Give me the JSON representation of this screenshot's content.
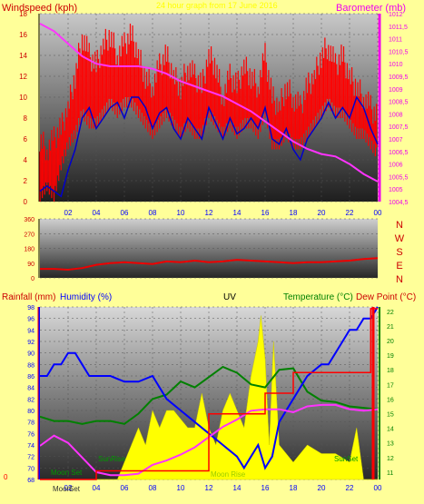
{
  "colors": {
    "page_bg": "#ffff99",
    "windspeed": "#ff0000",
    "wind_avg": "#0000cc",
    "barometer": "#ff33ff",
    "direction": "#ee0000",
    "rainfall": "#ff0000",
    "humidity": "#0000ff",
    "uv": "#ffff00",
    "temperature": "#008000",
    "dew_point": "#ff33ff",
    "wind_label": "#cc0000",
    "baro_label": "#ee00ee",
    "green_label": "#009900",
    "dark_label": "#333333"
  },
  "top_panel": {
    "left_title": "Windspeed (kph)",
    "center_title": "24 hour graph from 17 June 2016",
    "right_title": "Barometer (mb)"
  },
  "middle_panel": {
    "compass": [
      "N",
      "W",
      "S",
      "E",
      "N"
    ]
  },
  "bottom_panel": {
    "rainfall_label": "Rainfall (mm)",
    "humidity_label": "Humidity (%)",
    "uv_label": "UV",
    "temperature_label": "Temperature (°C)",
    "dewpoint_label": "Dew Point (°C)",
    "events": {
      "moon_set": "Moon Set",
      "sun_rise": "SunRise",
      "moon_rise": "Moon Rise",
      "sun_set": "SunSet"
    },
    "moon_label": "Moon",
    "moon_label_val": "Set"
  },
  "chart_data": [
    {
      "type": "line",
      "title": "24 hour graph from 17 June 2016",
      "x_ticks": [
        "02",
        "04",
        "06",
        "08",
        "10",
        "12",
        "14",
        "16",
        "18",
        "20",
        "22",
        "00"
      ],
      "ylabel_left": "Windspeed (kph)",
      "ylim_left": [
        0,
        18
      ],
      "y_ticks_left": [
        0,
        2,
        4,
        6,
        8,
        10,
        12,
        14,
        16,
        18
      ],
      "ylabel_right": "Barometer (mb)",
      "ylim_right": [
        1004.5,
        1012
      ],
      "y_ticks_right": [
        "1004,5",
        "1005",
        "1005,5",
        "1006",
        "1006,5",
        "1007",
        "1007,5",
        "1008",
        "1008,5",
        "1009",
        "1009,5",
        "1010",
        "1010,5",
        "1011",
        "1011,5",
        "1012"
      ],
      "series": [
        {
          "name": "Windspeed (kph)",
          "axis": "left",
          "style": "gust-bars",
          "x": [
            0,
            0.5,
            1,
            1.5,
            2,
            2.5,
            3,
            3.5,
            4,
            4.5,
            5,
            5.5,
            6,
            6.5,
            7,
            7.5,
            8,
            8.5,
            9,
            9.5,
            10,
            10.5,
            11,
            11.5,
            12,
            12.5,
            13,
            13.5,
            14,
            14.5,
            15,
            15.5,
            16,
            16.5,
            17,
            17.5,
            18,
            18.5,
            19,
            19.5,
            20,
            20.5,
            21,
            21.5,
            22,
            22.5,
            23,
            23.5,
            24
          ],
          "values": [
            6,
            5,
            6,
            7,
            9,
            12,
            16,
            14,
            13,
            15,
            16,
            14,
            15,
            16,
            14,
            12,
            11,
            13,
            14,
            12,
            11,
            13,
            12,
            11,
            14,
            13,
            10,
            12,
            11,
            13,
            12,
            11,
            14,
            10,
            9,
            11,
            10,
            9,
            11,
            12,
            14,
            15,
            13,
            14,
            12,
            11,
            10,
            9,
            8
          ],
          "low": [
            0,
            1,
            0,
            3,
            5,
            6,
            8,
            7,
            7,
            8,
            9,
            8,
            9,
            9,
            8,
            7,
            6,
            7,
            8,
            7,
            6,
            7,
            6,
            6,
            8,
            7,
            6,
            7,
            6,
            7,
            7,
            6,
            8,
            5,
            5,
            6,
            5,
            5,
            6,
            7,
            8,
            9,
            8,
            8,
            7,
            6,
            6,
            5,
            4
          ]
        },
        {
          "name": "Average wind",
          "axis": "left",
          "x": [
            0,
            0.5,
            1,
            1.5,
            2,
            2.5,
            3,
            3.5,
            4,
            4.5,
            5,
            5.5,
            6,
            6.5,
            7,
            7.5,
            8,
            8.5,
            9,
            9.5,
            10,
            10.5,
            11,
            11.5,
            12,
            12.5,
            13,
            13.5,
            14,
            14.5,
            15,
            15.5,
            16,
            16.5,
            17,
            17.5,
            18,
            18.5,
            19,
            19.5,
            20,
            20.5,
            21,
            21.5,
            22,
            22.5,
            23,
            23.5,
            24
          ],
          "values": [
            1,
            1.5,
            1,
            0.5,
            3,
            5,
            8,
            9,
            7,
            8,
            9,
            9.5,
            8,
            10,
            10,
            9,
            7,
            8.5,
            9,
            7,
            6,
            8,
            7,
            6,
            9,
            7.5,
            6,
            8,
            6.5,
            7,
            8,
            7,
            9,
            6,
            5.5,
            7,
            5,
            4,
            6,
            7,
            8,
            9.5,
            8,
            9,
            8,
            10,
            9,
            7,
            5.5
          ]
        },
        {
          "name": "Barometer (mb)",
          "axis": "right",
          "x": [
            0,
            1,
            2,
            3,
            4,
            5,
            6,
            7,
            8,
            9,
            10,
            11,
            12,
            13,
            14,
            15,
            16,
            17,
            18,
            19,
            20,
            21,
            22,
            23,
            24
          ],
          "values": [
            1011.6,
            1011.3,
            1010.8,
            1010.3,
            1010.0,
            1009.9,
            1009.9,
            1009.9,
            1009.8,
            1009.6,
            1009.3,
            1009.1,
            1008.9,
            1008.7,
            1008.4,
            1008.1,
            1007.7,
            1007.3,
            1006.9,
            1006.6,
            1006.4,
            1006.3,
            1006.0,
            1005.6,
            1005.3
          ]
        }
      ]
    },
    {
      "type": "line",
      "x_ticks": [],
      "ylim": [
        0,
        360
      ],
      "y_ticks": [
        0,
        90,
        180,
        270,
        360
      ],
      "series": [
        {
          "name": "Wind direction",
          "x": [
            0,
            1,
            2,
            3,
            4,
            5,
            6,
            7,
            8,
            9,
            10,
            11,
            12,
            13,
            14,
            15,
            16,
            17,
            18,
            19,
            20,
            21,
            22,
            23,
            24
          ],
          "values": [
            55,
            55,
            50,
            60,
            80,
            90,
            95,
            90,
            85,
            100,
            95,
            105,
            95,
            100,
            110,
            105,
            100,
            95,
            90,
            95,
            95,
            100,
            105,
            115,
            120
          ]
        }
      ]
    },
    {
      "type": "line",
      "x_ticks": [
        "02",
        "04",
        "06",
        "08",
        "10",
        "12",
        "14",
        "16",
        "18",
        "20",
        "22",
        "00"
      ],
      "ylim_rain": [
        0,
        1
      ],
      "ylim_humidity": [
        68,
        98
      ],
      "y_ticks_humidity": [
        68,
        70,
        72,
        74,
        76,
        78,
        80,
        82,
        84,
        86,
        88,
        90,
        92,
        94,
        96,
        98
      ],
      "ylim_temperature": [
        10.5,
        22.3
      ],
      "y_ticks_temperature": [
        11,
        12,
        13,
        14,
        15,
        16,
        17,
        18,
        19,
        20,
        21,
        22
      ],
      "series": [
        {
          "name": "Humidity (%)",
          "axis": "humidity",
          "x": [
            0,
            0.5,
            1,
            1.5,
            2,
            2.5,
            3,
            3.5,
            4,
            5,
            6,
            7,
            8,
            9,
            10,
            11,
            12,
            13,
            14,
            14.5,
            15,
            15.5,
            16,
            16.5,
            17,
            18,
            19,
            20,
            20.5,
            21,
            21.5,
            22,
            22.5,
            23,
            23.5,
            24
          ],
          "values": [
            86,
            86,
            88,
            88,
            90,
            90,
            88,
            86,
            86,
            86,
            85,
            85,
            86,
            82,
            80,
            78,
            76,
            74,
            72,
            70,
            72,
            74,
            70,
            72,
            78,
            82,
            86,
            88,
            88,
            90,
            92,
            94,
            94,
            96,
            96,
            98
          ]
        },
        {
          "name": "Temperature (°C)",
          "axis": "temperature",
          "x": [
            0,
            1,
            2,
            3,
            4,
            5,
            6,
            7,
            8,
            9,
            10,
            11,
            12,
            13,
            14,
            15,
            16,
            17,
            18,
            19,
            20,
            21,
            22,
            23,
            24
          ],
          "values": [
            14.8,
            14.5,
            14.5,
            14.3,
            14.5,
            14.5,
            14.3,
            15.0,
            16.0,
            16.3,
            17.2,
            16.8,
            17.5,
            18.2,
            17.8,
            17.0,
            16.8,
            18.0,
            18.1,
            16.5,
            15.9,
            15.8,
            15.5,
            15.4,
            15.3
          ]
        },
        {
          "name": "Dew Point (°C)",
          "axis": "temperature",
          "x": [
            0,
            1,
            2,
            3,
            4,
            5,
            6,
            7,
            8,
            9,
            10,
            11,
            12,
            13,
            14,
            15,
            16,
            17,
            18,
            19,
            20,
            21,
            22,
            23,
            24
          ],
          "values": [
            12.8,
            13.5,
            13.0,
            12.0,
            11.0,
            10.8,
            10.8,
            10.9,
            11.5,
            11.8,
            12.2,
            12.7,
            13.4,
            14.1,
            14.6,
            15.2,
            15.3,
            15.3,
            15.1,
            15.5,
            15.6,
            15.6,
            15.3,
            15.2,
            15.3
          ]
        },
        {
          "name": "UV",
          "axis": "uv",
          "style": "area",
          "x": [
            0,
            5.5,
            6,
            7,
            7.5,
            8,
            8.5,
            9,
            9.5,
            10,
            10.5,
            11,
            11.5,
            12,
            12.5,
            13,
            13.5,
            14,
            14.5,
            15,
            15.5,
            15.7,
            16,
            16.3,
            16.6,
            17,
            18,
            19,
            20,
            21,
            22,
            22.5,
            23,
            24
          ],
          "values": [
            0,
            0,
            1,
            3,
            2,
            4,
            3,
            4,
            4,
            3.5,
            3,
            3,
            5,
            3,
            2,
            4,
            5,
            4,
            3,
            6,
            8,
            9.5,
            7,
            2,
            8,
            2,
            1,
            2,
            1.5,
            1.5,
            1,
            3,
            0,
            0
          ]
        },
        {
          "name": "Rainfall (mm)",
          "axis": "rain",
          "style": "step",
          "x": [
            0,
            4,
            4,
            12,
            12,
            16,
            16,
            18,
            18,
            22,
            22,
            23.5,
            23.5,
            24
          ],
          "values": [
            0,
            0,
            0.05,
            0.05,
            0.38,
            0.38,
            0.5,
            0.5,
            0.62,
            0.62,
            0.62,
            0.62,
            0.99,
            0.99
          ]
        }
      ]
    }
  ]
}
